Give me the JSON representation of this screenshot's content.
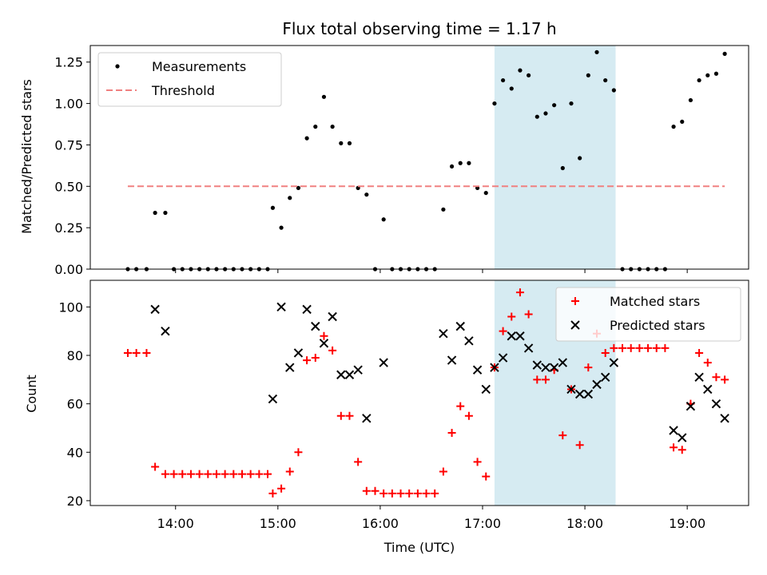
{
  "chart_data": [
    {
      "type": "scatter",
      "title": "Flux total observing time = 1.17 h",
      "xlabel": "",
      "ylabel": "Matched/Predicted stars",
      "ylim": [
        0,
        1.35
      ],
      "yticks": [
        "0.00",
        "0.25",
        "0.50",
        "0.75",
        "1.00",
        "1.25"
      ],
      "yticks_values": [
        0,
        0.25,
        0.5,
        0.75,
        1.0,
        1.25
      ],
      "highlight_span": [
        "17:07",
        "18:18"
      ],
      "legend": {
        "position": "top-left"
      },
      "series": [
        {
          "name": "Measurements",
          "color": "#000000",
          "marker": "dot",
          "points": [
            [
              "13:32",
              0
            ],
            [
              "13:37",
              0
            ],
            [
              "13:43",
              0
            ],
            [
              "13:48",
              0.34
            ],
            [
              "13:54",
              0.34
            ],
            [
              "13:59",
              0
            ],
            [
              "14:04",
              0
            ],
            [
              "14:09",
              0
            ],
            [
              "14:14",
              0
            ],
            [
              "14:19",
              0
            ],
            [
              "14:24",
              0
            ],
            [
              "14:29",
              0
            ],
            [
              "14:34",
              0
            ],
            [
              "14:39",
              0
            ],
            [
              "14:44",
              0
            ],
            [
              "14:49",
              0
            ],
            [
              "14:54",
              0
            ],
            [
              "14:57",
              0.37
            ],
            [
              "15:02",
              0.25
            ],
            [
              "15:07",
              0.43
            ],
            [
              "15:12",
              0.49
            ],
            [
              "15:17",
              0.79
            ],
            [
              "15:22",
              0.86
            ],
            [
              "15:27",
              1.04
            ],
            [
              "15:32",
              0.86
            ],
            [
              "15:37",
              0.76
            ],
            [
              "15:42",
              0.76
            ],
            [
              "15:47",
              0.49
            ],
            [
              "15:52",
              0.45
            ],
            [
              "15:57",
              0
            ],
            [
              "16:02",
              0.3
            ],
            [
              "16:07",
              0
            ],
            [
              "16:12",
              0
            ],
            [
              "16:17",
              0
            ],
            [
              "16:22",
              0
            ],
            [
              "16:27",
              0
            ],
            [
              "16:32",
              0
            ],
            [
              "16:37",
              0.36
            ],
            [
              "16:42",
              0.62
            ],
            [
              "16:47",
              0.64
            ],
            [
              "16:52",
              0.64
            ],
            [
              "16:57",
              0.49
            ],
            [
              "17:02",
              0.46
            ],
            [
              "17:07",
              1.0
            ],
            [
              "17:12",
              1.14
            ],
            [
              "17:17",
              1.09
            ],
            [
              "17:22",
              1.2
            ],
            [
              "17:27",
              1.17
            ],
            [
              "17:32",
              0.92
            ],
            [
              "17:37",
              0.94
            ],
            [
              "17:42",
              0.99
            ],
            [
              "17:47",
              0.61
            ],
            [
              "17:52",
              1.0
            ],
            [
              "17:57",
              0.67
            ],
            [
              "18:02",
              1.17
            ],
            [
              "18:07",
              1.31
            ],
            [
              "18:12",
              1.14
            ],
            [
              "18:17",
              1.08
            ],
            [
              "18:22",
              0
            ],
            [
              "18:27",
              0
            ],
            [
              "18:32",
              0
            ],
            [
              "18:37",
              0
            ],
            [
              "18:42",
              0
            ],
            [
              "18:47",
              0
            ],
            [
              "18:52",
              0.86
            ],
            [
              "18:57",
              0.89
            ],
            [
              "19:02",
              1.02
            ],
            [
              "19:07",
              1.14
            ],
            [
              "19:12",
              1.17
            ],
            [
              "19:17",
              1.18
            ],
            [
              "19:22",
              1.3
            ]
          ]
        },
        {
          "name": "Threshold",
          "color": "#f08080",
          "marker": "dashed-line",
          "points": [
            [
              "13:32",
              0.5
            ],
            [
              "19:22",
              0.5
            ]
          ]
        }
      ]
    },
    {
      "type": "scatter",
      "title": "",
      "xlabel": "Time (UTC)",
      "ylabel": "Count",
      "ylim": [
        18,
        111
      ],
      "yticks": [
        "20",
        "40",
        "60",
        "80",
        "100"
      ],
      "yticks_values": [
        20,
        40,
        60,
        80,
        100
      ],
      "xticks": [
        "14:00",
        "15:00",
        "16:00",
        "17:00",
        "18:00",
        "19:00"
      ],
      "highlight_span": [
        "17:07",
        "18:18"
      ],
      "legend": {
        "position": "top-right"
      },
      "series": [
        {
          "name": "Matched stars",
          "color": "#ff0000",
          "marker": "plus",
          "points": [
            [
              "13:32",
              81
            ],
            [
              "13:37",
              81
            ],
            [
              "13:43",
              81
            ],
            [
              "13:48",
              34
            ],
            [
              "13:54",
              31
            ],
            [
              "13:59",
              31
            ],
            [
              "14:04",
              31
            ],
            [
              "14:09",
              31
            ],
            [
              "14:14",
              31
            ],
            [
              "14:19",
              31
            ],
            [
              "14:24",
              31
            ],
            [
              "14:29",
              31
            ],
            [
              "14:34",
              31
            ],
            [
              "14:39",
              31
            ],
            [
              "14:44",
              31
            ],
            [
              "14:49",
              31
            ],
            [
              "14:54",
              31
            ],
            [
              "14:57",
              23
            ],
            [
              "15:02",
              25
            ],
            [
              "15:07",
              32
            ],
            [
              "15:12",
              40
            ],
            [
              "15:17",
              78
            ],
            [
              "15:22",
              79
            ],
            [
              "15:27",
              88
            ],
            [
              "15:32",
              82
            ],
            [
              "15:37",
              55
            ],
            [
              "15:42",
              55
            ],
            [
              "15:47",
              36
            ],
            [
              "15:52",
              24
            ],
            [
              "15:57",
              24
            ],
            [
              "16:02",
              23
            ],
            [
              "16:07",
              23
            ],
            [
              "16:12",
              23
            ],
            [
              "16:17",
              23
            ],
            [
              "16:22",
              23
            ],
            [
              "16:27",
              23
            ],
            [
              "16:32",
              23
            ],
            [
              "16:37",
              32
            ],
            [
              "16:42",
              48
            ],
            [
              "16:47",
              59
            ],
            [
              "16:52",
              55
            ],
            [
              "16:57",
              36
            ],
            [
              "17:02",
              30
            ],
            [
              "17:07",
              75
            ],
            [
              "17:12",
              90
            ],
            [
              "17:17",
              96
            ],
            [
              "17:22",
              106
            ],
            [
              "17:27",
              97
            ],
            [
              "17:32",
              70
            ],
            [
              "17:37",
              70
            ],
            [
              "17:42",
              74
            ],
            [
              "17:47",
              47
            ],
            [
              "17:52",
              66
            ],
            [
              "17:57",
              43
            ],
            [
              "18:02",
              75
            ],
            [
              "18:07",
              89
            ],
            [
              "18:12",
              81
            ],
            [
              "18:17",
              83
            ],
            [
              "18:22",
              83
            ],
            [
              "18:27",
              83
            ],
            [
              "18:32",
              83
            ],
            [
              "18:37",
              83
            ],
            [
              "18:42",
              83
            ],
            [
              "18:47",
              83
            ],
            [
              "18:52",
              42
            ],
            [
              "18:57",
              41
            ],
            [
              "19:02",
              60
            ],
            [
              "19:07",
              81
            ],
            [
              "19:12",
              77
            ],
            [
              "19:17",
              71
            ],
            [
              "19:22",
              70
            ]
          ]
        },
        {
          "name": "Predicted stars",
          "color": "#000000",
          "marker": "x",
          "points": [
            [
              "13:48",
              99
            ],
            [
              "13:54",
              90
            ],
            [
              "14:57",
              62
            ],
            [
              "15:02",
              100
            ],
            [
              "15:07",
              75
            ],
            [
              "15:12",
              81
            ],
            [
              "15:17",
              99
            ],
            [
              "15:22",
              92
            ],
            [
              "15:27",
              85
            ],
            [
              "15:32",
              96
            ],
            [
              "15:37",
              72
            ],
            [
              "15:42",
              72
            ],
            [
              "15:47",
              74
            ],
            [
              "15:52",
              54
            ],
            [
              "16:02",
              77
            ],
            [
              "16:37",
              89
            ],
            [
              "16:42",
              78
            ],
            [
              "16:47",
              92
            ],
            [
              "16:52",
              86
            ],
            [
              "16:57",
              74
            ],
            [
              "17:02",
              66
            ],
            [
              "17:07",
              75
            ],
            [
              "17:12",
              79
            ],
            [
              "17:17",
              88
            ],
            [
              "17:22",
              88
            ],
            [
              "17:27",
              83
            ],
            [
              "17:32",
              76
            ],
            [
              "17:37",
              75
            ],
            [
              "17:42",
              75
            ],
            [
              "17:47",
              77
            ],
            [
              "17:52",
              66
            ],
            [
              "17:57",
              64
            ],
            [
              "18:02",
              64
            ],
            [
              "18:07",
              68
            ],
            [
              "18:12",
              71
            ],
            [
              "18:17",
              77
            ],
            [
              "18:52",
              49
            ],
            [
              "18:57",
              46
            ],
            [
              "19:02",
              59
            ],
            [
              "19:07",
              71
            ],
            [
              "19:12",
              66
            ],
            [
              "19:17",
              60
            ],
            [
              "19:22",
              54
            ]
          ]
        }
      ]
    }
  ]
}
